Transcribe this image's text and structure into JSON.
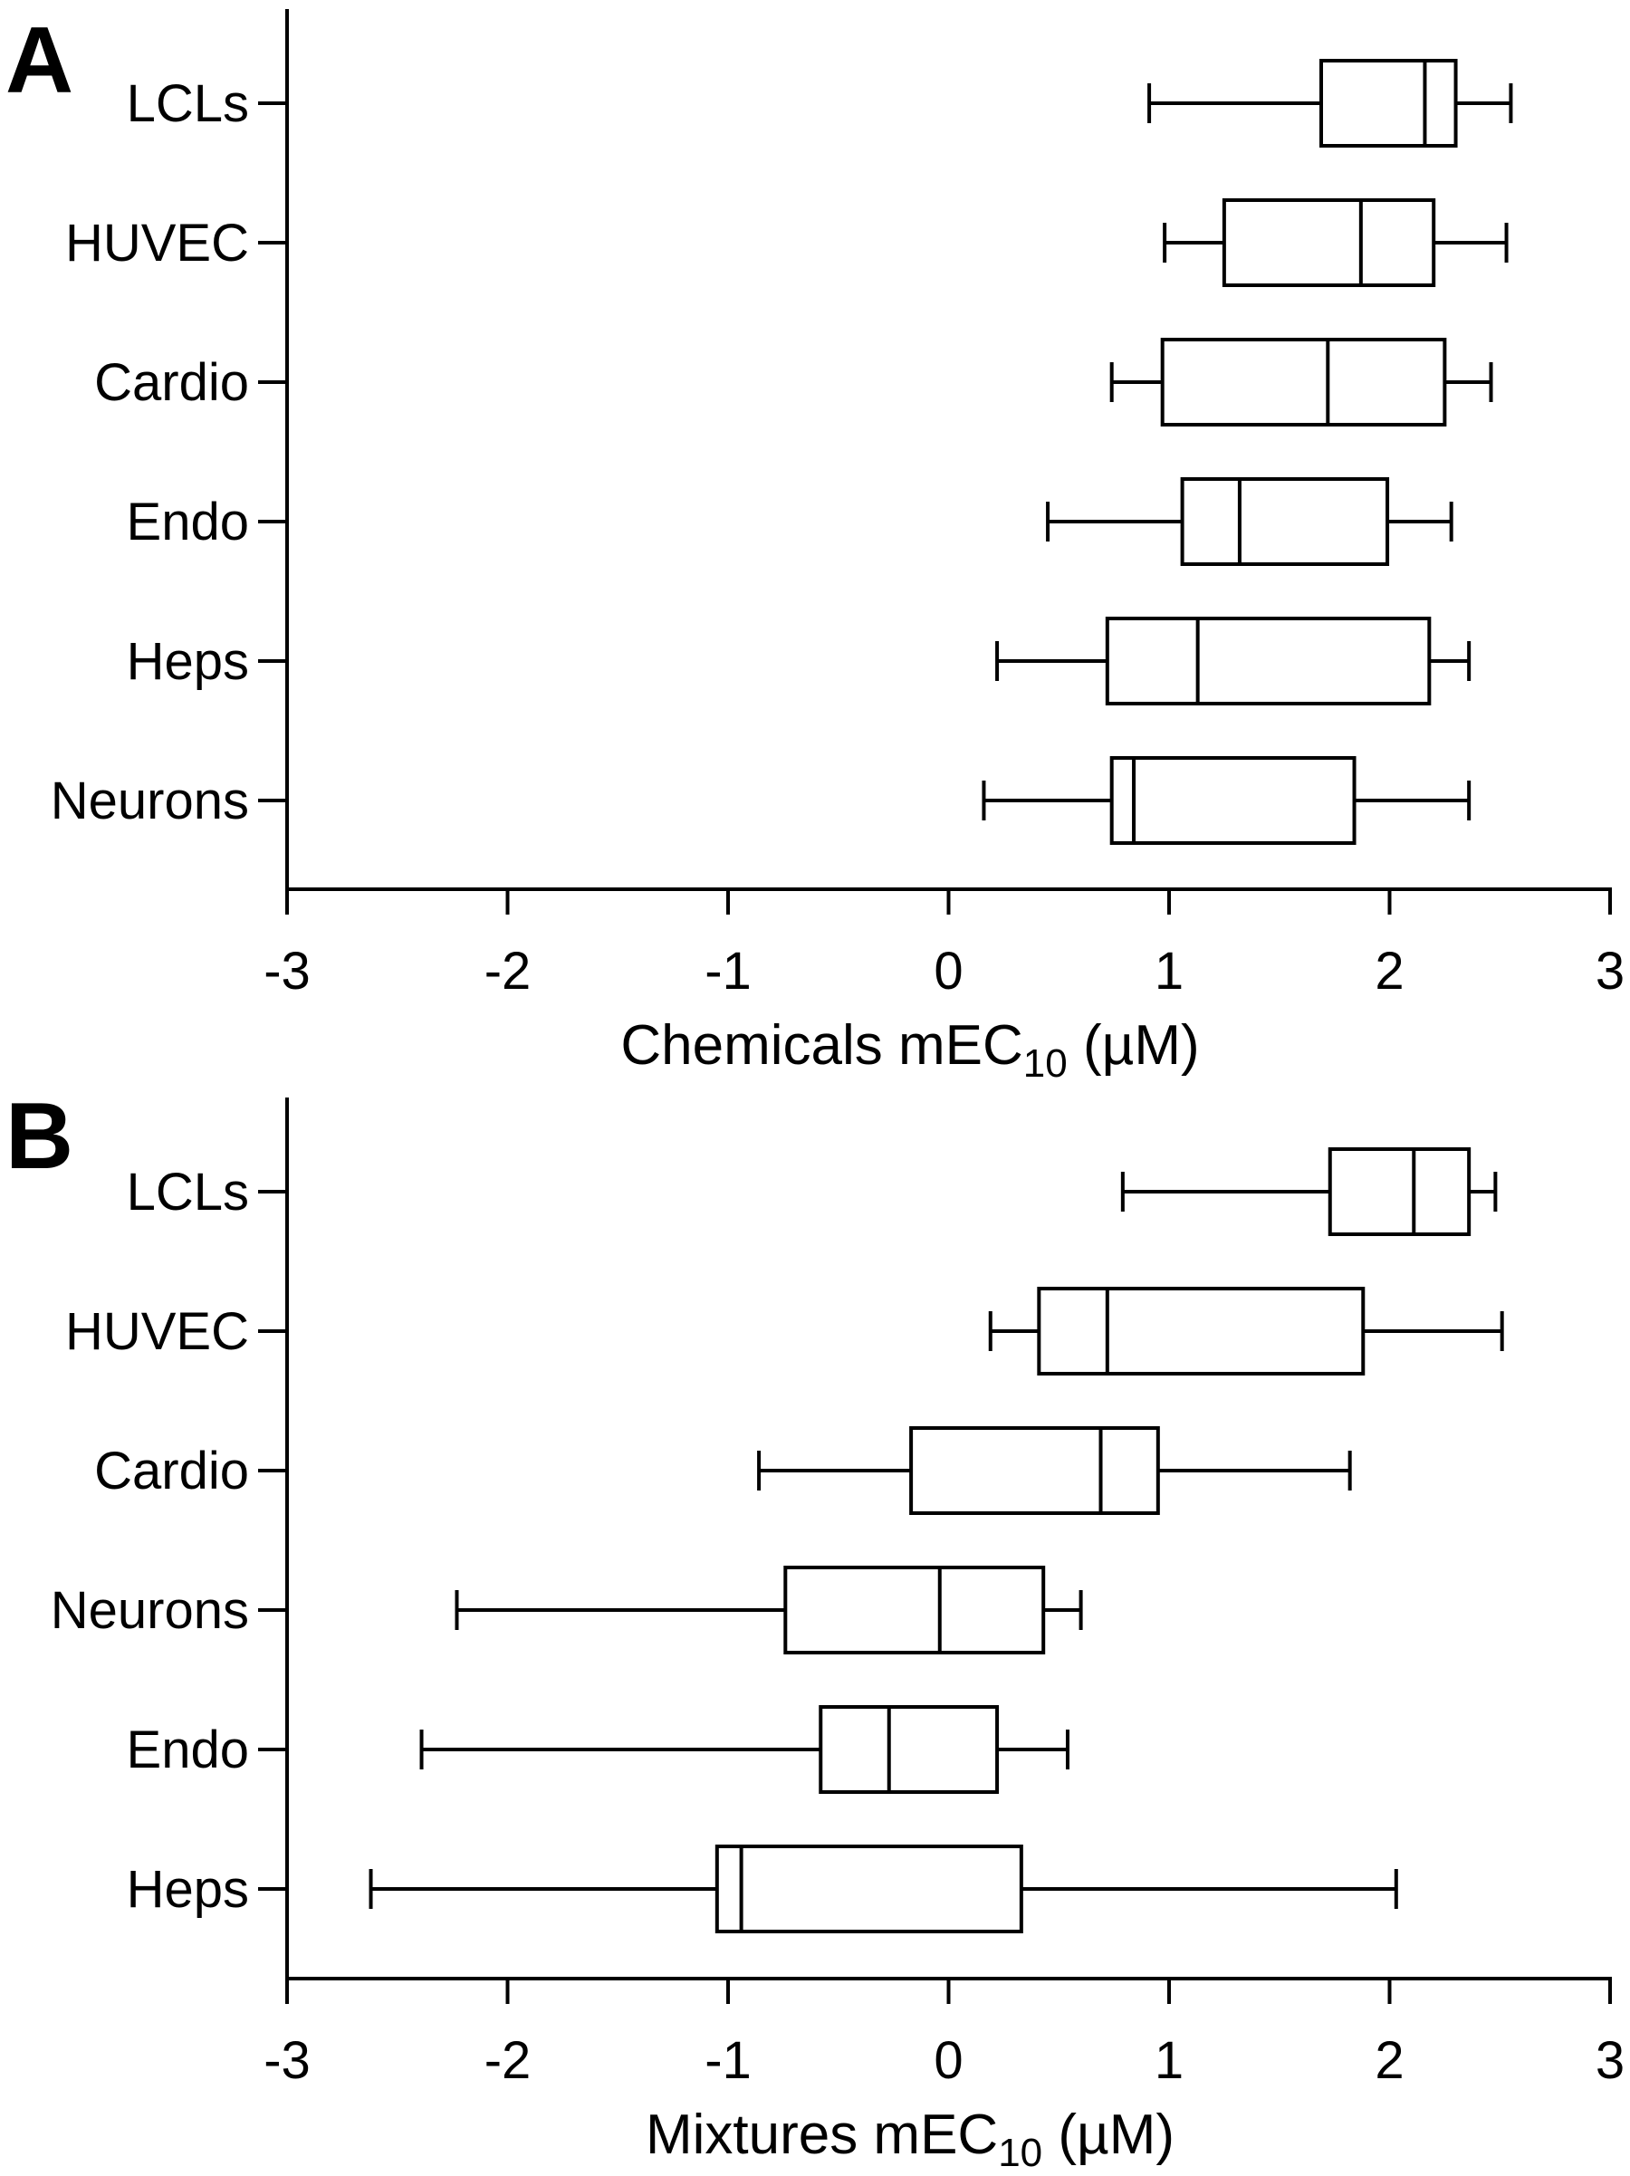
{
  "chart_data": [
    {
      "type": "boxplot",
      "orientation": "horizontal",
      "panel_label": "A",
      "xlabel_main": "Chemicals mEC",
      "xlabel_sub": "10",
      "xlabel_unit": " (µM)",
      "xlim": [
        -3,
        3
      ],
      "xticks": [
        -3,
        -2,
        -1,
        0,
        1,
        2,
        3
      ],
      "xtick_labels": [
        "-3",
        "-2",
        "-1",
        "0",
        "1",
        "2",
        "3"
      ],
      "grid": false,
      "categories": [
        "LCLs",
        "HUVEC",
        "Cardio",
        "Endo",
        "Heps",
        "Neurons"
      ],
      "boxes": [
        {
          "label": "LCLs",
          "min": 0.91,
          "q1": 1.69,
          "median": 2.16,
          "q3": 2.3,
          "max": 2.55
        },
        {
          "label": "HUVEC",
          "min": 0.98,
          "q1": 1.25,
          "median": 1.87,
          "q3": 2.2,
          "max": 2.53
        },
        {
          "label": "Cardio",
          "min": 0.74,
          "q1": 0.97,
          "median": 1.72,
          "q3": 2.25,
          "max": 2.46
        },
        {
          "label": "Endo",
          "min": 0.45,
          "q1": 1.06,
          "median": 1.32,
          "q3": 1.99,
          "max": 2.28
        },
        {
          "label": "Heps",
          "min": 0.22,
          "q1": 0.72,
          "median": 1.13,
          "q3": 2.18,
          "max": 2.36
        },
        {
          "label": "Neurons",
          "min": 0.16,
          "q1": 0.74,
          "median": 0.84,
          "q3": 1.84,
          "max": 2.36
        }
      ]
    },
    {
      "type": "boxplot",
      "orientation": "horizontal",
      "panel_label": "B",
      "xlabel_main": "Mixtures mEC",
      "xlabel_sub": "10",
      "xlabel_unit": " (µM)",
      "xlim": [
        -3,
        3
      ],
      "xticks": [
        -3,
        -2,
        -1,
        0,
        1,
        2,
        3
      ],
      "xtick_labels": [
        "-3",
        "-2",
        "-1",
        "0",
        "1",
        "2",
        "3"
      ],
      "grid": false,
      "categories": [
        "LCLs",
        "HUVEC",
        "Cardio",
        "Neurons",
        "Endo",
        "Heps"
      ],
      "boxes": [
        {
          "label": "LCLs",
          "min": 0.79,
          "q1": 1.73,
          "median": 2.11,
          "q3": 2.36,
          "max": 2.48
        },
        {
          "label": "HUVEC",
          "min": 0.19,
          "q1": 0.41,
          "median": 0.72,
          "q3": 1.88,
          "max": 2.51
        },
        {
          "label": "Cardio",
          "min": -0.86,
          "q1": -0.17,
          "median": 0.69,
          "q3": 0.95,
          "max": 1.82
        },
        {
          "label": "Neurons",
          "min": -2.23,
          "q1": -0.74,
          "median": -0.04,
          "q3": 0.43,
          "max": 0.6
        },
        {
          "label": "Endo",
          "min": -2.39,
          "q1": -0.58,
          "median": -0.27,
          "q3": 0.22,
          "max": 0.54
        },
        {
          "label": "Heps",
          "min": -2.62,
          "q1": -1.05,
          "median": -0.94,
          "q3": 0.33,
          "max": 2.03
        }
      ]
    }
  ]
}
